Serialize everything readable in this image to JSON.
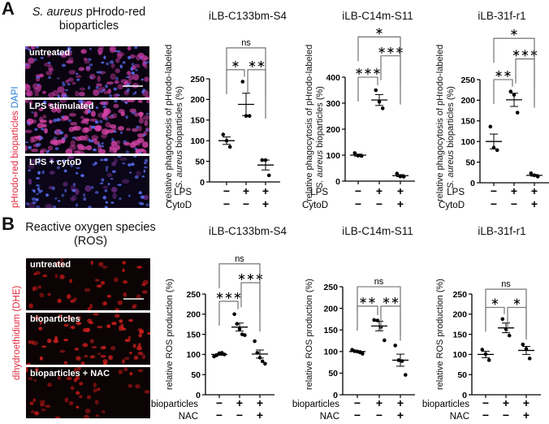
{
  "panels": {
    "A": {
      "letter": "A",
      "title_italic": "S. aureus",
      "title_rest": " pHrodo-red",
      "title_line2": "bioparticles",
      "side_label_red": "pHrodo-red bioparticles",
      "side_label_blue": " DAPI",
      "side_label_red_color": "#e0283c",
      "side_label_blue_color": "#2a7fd4",
      "images": [
        {
          "label": "untreated",
          "style": "magenta-dense",
          "scale_bar": true
        },
        {
          "label": "LPS stimulated",
          "style": "magenta-bright",
          "scale_bar": false
        },
        {
          "label": "LPS + cytoD",
          "style": "blue-dim",
          "scale_bar": false
        }
      ],
      "ylabel_line1": "relative phagocytosis of pHrodo-labeled",
      "ylabel_line2_italic": "S. aureus",
      "ylabel_line2_rest": " bioparticles (%)",
      "row_labels": [
        "LPS",
        "CytoD"
      ]
    },
    "B": {
      "letter": "B",
      "title_line1": "Reactive oxygen species",
      "title_line2": "(ROS)",
      "side_label_red": "dihydroethidium (DHE)",
      "side_label_red_color": "#e0283c",
      "images": [
        {
          "label": "untreated",
          "style": "red-sparse",
          "scale_bar": true
        },
        {
          "label": "bioparticles",
          "style": "red-medium",
          "scale_bar": false
        },
        {
          "label": "bioparticles + NAC",
          "style": "red-sparse",
          "scale_bar": false
        }
      ],
      "ylabel": "relative ROS production (%)",
      "row_labels": [
        "bioparticles",
        "NAC"
      ]
    }
  },
  "chart_data": [
    {
      "id": "A1",
      "type": "scatter",
      "title": "iLB-C133bm-S4",
      "ylabel": "relative phagocytosis of pHrodo-labeled S. aureus bioparticles (%)",
      "ylim": [
        0,
        250
      ],
      "yticks": [
        0,
        50,
        100,
        150,
        200,
        250
      ],
      "categories": [
        "LPS-/CytoD-",
        "LPS+/CytoD-",
        "LPS+/CytoD+"
      ],
      "rows": [
        {
          "label": "LPS",
          "values": [
            "−",
            "+",
            "+"
          ]
        },
        {
          "label": "CytoD",
          "values": [
            "−",
            "−",
            "+"
          ]
        }
      ],
      "points": [
        [
          115,
          100,
          85
        ],
        [
          243,
          160,
          160
        ],
        [
          53,
          53,
          16
        ]
      ],
      "mean": [
        100,
        188,
        41
      ],
      "sem": [
        9,
        27,
        12
      ],
      "significance": [
        {
          "from": 0,
          "to": 1,
          "label": "*",
          "y": 272
        },
        {
          "from": 1,
          "to": 2,
          "label": "**",
          "y": 272
        },
        {
          "from": 0,
          "to": 2,
          "label": "ns",
          "y": 325
        }
      ]
    },
    {
      "id": "A2",
      "type": "scatter",
      "title": "iLB-C14m-S11",
      "ylabel": "relative phagocytosis of pHrodo-labeled S. aureus bioparticles (%)",
      "ylim": [
        0,
        400
      ],
      "yticks": [
        0,
        100,
        200,
        300,
        400
      ],
      "categories": [
        "LPS-/CytoD-",
        "LPS+/CytoD-",
        "LPS+/CytoD+"
      ],
      "rows": [
        {
          "label": "LPS",
          "values": [
            "−",
            "+",
            "+"
          ]
        },
        {
          "label": "CytoD",
          "values": [
            "−",
            "−",
            "+"
          ]
        }
      ],
      "points": [
        [
          108,
          98,
          97
        ],
        [
          350,
          305,
          280
        ],
        [
          29,
          18,
          17
        ]
      ],
      "mean": [
        100,
        312,
        21
      ],
      "sem": [
        4,
        21,
        4
      ],
      "significance": [
        {
          "from": 0,
          "to": 1,
          "label": "***",
          "y": 400
        },
        {
          "from": 1,
          "to": 2,
          "label": "***",
          "y": 482
        },
        {
          "from": 0,
          "to": 2,
          "label": "*",
          "y": 555
        }
      ]
    },
    {
      "id": "A3",
      "type": "scatter",
      "title": "iLB-31f-r1",
      "ylabel": "relative phagocytosis of pHrodo-labeled S. aureus bioparticles (%)",
      "ylim": [
        0,
        250
      ],
      "yticks": [
        0,
        50,
        100,
        150,
        200,
        250
      ],
      "categories": [
        "LPS-/CytoD-",
        "LPS+/CytoD-",
        "LPS+/CytoD+"
      ],
      "rows": [
        {
          "label": "LPS",
          "values": [
            "−",
            "+",
            "+"
          ]
        },
        {
          "label": "CytoD",
          "values": [
            "−",
            "−",
            "+"
          ]
        }
      ],
      "points": [
        [
          136,
          85,
          79
        ],
        [
          221,
          213,
          170
        ],
        [
          23,
          18,
          15
        ]
      ],
      "mean": [
        100,
        201,
        18
      ],
      "sem": [
        18,
        16,
        2
      ],
      "significance": [
        {
          "from": 0,
          "to": 1,
          "label": "**",
          "y": 250
        },
        {
          "from": 1,
          "to": 2,
          "label": "***",
          "y": 300
        },
        {
          "from": 0,
          "to": 2,
          "label": "*",
          "y": 350
        }
      ]
    },
    {
      "id": "B1",
      "type": "scatter",
      "title": "iLB-C133bm-S4",
      "ylabel": "relative ROS production (%)",
      "ylim": [
        0,
        250
      ],
      "yticks": [
        0,
        50,
        100,
        150,
        200,
        250
      ],
      "categories": [
        "bioparticles-/NAC-",
        "bioparticles+/NAC-",
        "bioparticles+/NAC+"
      ],
      "rows": [
        {
          "label": "bioparticles",
          "values": [
            "−",
            "+",
            "+"
          ]
        },
        {
          "label": "NAC",
          "values": [
            "−",
            "−",
            "+"
          ]
        }
      ],
      "points": [
        [
          95,
          98,
          103,
          104,
          100
        ],
        [
          200,
          176,
          163,
          150,
          148
        ],
        [
          133,
          104,
          92,
          83,
          77
        ]
      ],
      "mean": [
        100,
        168,
        101
      ],
      "sem": [
        2,
        10,
        10
      ],
      "significance": [
        {
          "from": 0,
          "to": 1,
          "label": "***",
          "y": 232
        },
        {
          "from": 1,
          "to": 2,
          "label": "***",
          "y": 278
        },
        {
          "from": 0,
          "to": 2,
          "label": "ns",
          "y": 325
        }
      ]
    },
    {
      "id": "B2",
      "type": "scatter",
      "title": "iLB-C14m-S11",
      "ylabel": "relative ROS production (%)",
      "ylim": [
        0,
        250
      ],
      "yticks": [
        0,
        50,
        100,
        150,
        200,
        250
      ],
      "categories": [
        "bioparticles-/NAC-",
        "bioparticles+/NAC-",
        "bioparticles+/NAC+"
      ],
      "rows": [
        {
          "label": "bioparticles",
          "values": [
            "−",
            "+",
            "+"
          ]
        },
        {
          "label": "NAC",
          "values": [
            "−",
            "−",
            "+"
          ]
        }
      ],
      "points": [
        [
          104,
          101,
          100,
          98,
          95
        ],
        [
          173,
          172,
          157,
          126
        ],
        [
          114,
          80,
          78,
          46
        ]
      ],
      "mean": [
        100,
        159,
        80
      ],
      "sem": [
        2,
        11,
        14
      ],
      "significance": [
        {
          "from": 0,
          "to": 1,
          "label": "**",
          "y": 205
        },
        {
          "from": 1,
          "to": 2,
          "label": "**",
          "y": 205
        },
        {
          "from": 0,
          "to": 2,
          "label": "ns",
          "y": 250
        }
      ]
    },
    {
      "id": "B3",
      "type": "scatter",
      "title": "iLB-31f-r1",
      "ylabel": "relative ROS production (%)",
      "ylim": [
        0,
        250
      ],
      "yticks": [
        0,
        50,
        100,
        150,
        200,
        250
      ],
      "categories": [
        "bioparticles-/NAC-",
        "bioparticles+/NAC-",
        "bioparticles+/NAC+"
      ],
      "rows": [
        {
          "label": "bioparticles",
          "values": [
            "−",
            "+",
            "+"
          ]
        },
        {
          "label": "NAC",
          "values": [
            "−",
            "−",
            "+"
          ]
        }
      ],
      "points": [
        [
          112,
          101,
          86
        ],
        [
          188,
          163,
          147
        ],
        [
          125,
          114,
          90
        ]
      ],
      "mean": [
        100,
        166,
        110
      ],
      "sem": [
        8,
        12,
        10
      ],
      "significance": [
        {
          "from": 0,
          "to": 1,
          "label": "*",
          "y": 217
        },
        {
          "from": 1,
          "to": 2,
          "label": "*",
          "y": 217
        },
        {
          "from": 0,
          "to": 2,
          "label": "ns",
          "y": 262
        }
      ]
    }
  ]
}
